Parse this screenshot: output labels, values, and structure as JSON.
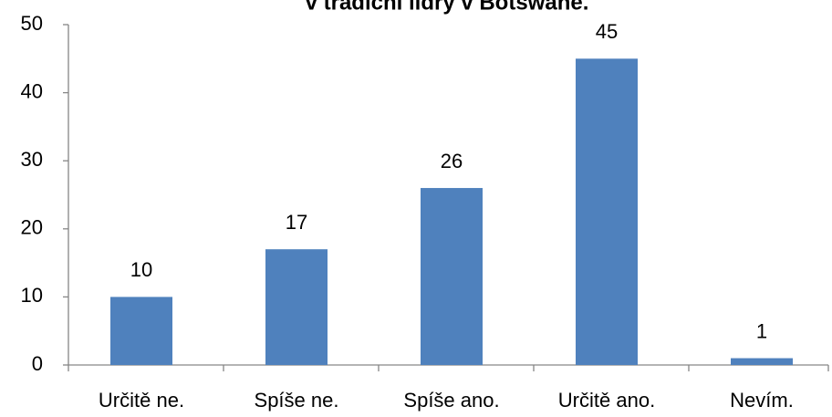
{
  "chart_data": {
    "type": "bar",
    "title": "v tradiční lídry v Botswaně.",
    "categories": [
      "Určitě ne.",
      "Spíše ne.",
      "Spíše ano.",
      "Určitě ano.",
      "Nevím."
    ],
    "values": [
      10,
      17,
      26,
      45,
      1
    ],
    "color": "#4f81bd",
    "ylim": [
      0,
      50
    ],
    "yticks": [
      0,
      10,
      20,
      30,
      40,
      50
    ],
    "grid": false
  }
}
